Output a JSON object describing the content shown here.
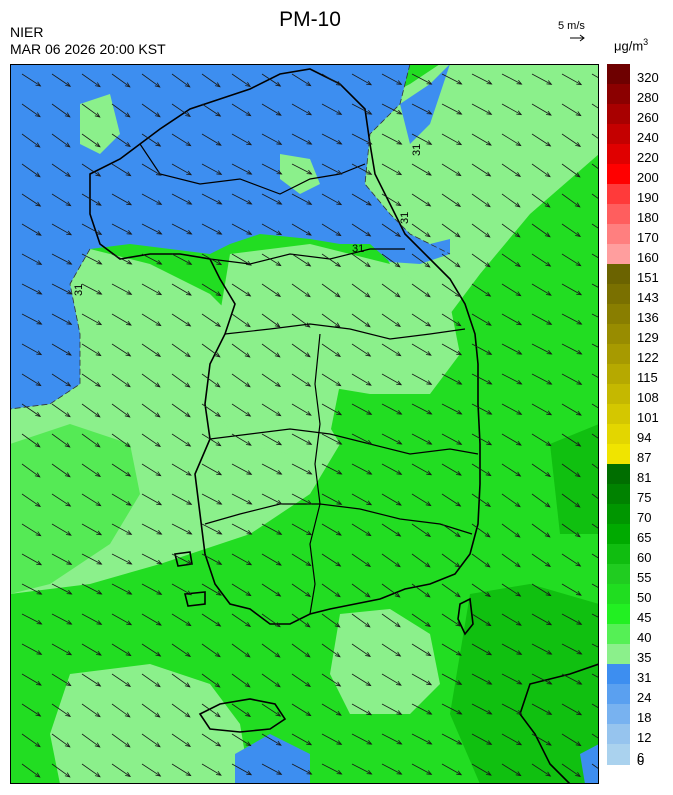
{
  "header": {
    "title": "PM-10",
    "org": "NIER",
    "datetime": "MAR 06 2026 20:00 KST",
    "wind_reference": "5 m/s",
    "unit_base": "μg/m",
    "unit_exp": "3"
  },
  "contour_labels": [
    "31",
    "31",
    "31",
    "31"
  ],
  "legend": {
    "labels": [
      "320",
      "280",
      "260",
      "240",
      "220",
      "200",
      "190",
      "180",
      "170",
      "160",
      "151",
      "143",
      "136",
      "129",
      "122",
      "115",
      "108",
      "101",
      "94",
      "87",
      "81",
      "75",
      "70",
      "65",
      "60",
      "55",
      "50",
      "45",
      "40",
      "35",
      "31",
      "24",
      "18",
      "12",
      "6",
      "0"
    ],
    "colors": [
      "#6e0000",
      "#8b0000",
      "#a80000",
      "#c40000",
      "#e00000",
      "#ff0000",
      "#ff3a3a",
      "#ff5e5e",
      "#ff7f7f",
      "#ff9e9e",
      "#6b6300",
      "#7a7000",
      "#897e00",
      "#988c00",
      "#a79a00",
      "#b6a900",
      "#c5b800",
      "#d4c700",
      "#e3d600",
      "#f0e400",
      "#006e00",
      "#008200",
      "#009600",
      "#00aa00",
      "#10bd10",
      "#20cc20",
      "#20dd20",
      "#22f022",
      "#55f055",
      "#8bf08b",
      "#3d8ef0",
      "#5aa0f0",
      "#78b2f0",
      "#96c4ee",
      "#aad2ee"
    ]
  },
  "map": {
    "background": "#22dd22",
    "colors": {
      "blue_zone": "#3d8ef0",
      "light_green": "#8bf08b",
      "mid_green": "#55ea55",
      "dark_green": "#10c010",
      "boundary": "#000000"
    },
    "wind_arrow_color": "#1a1a1a"
  }
}
